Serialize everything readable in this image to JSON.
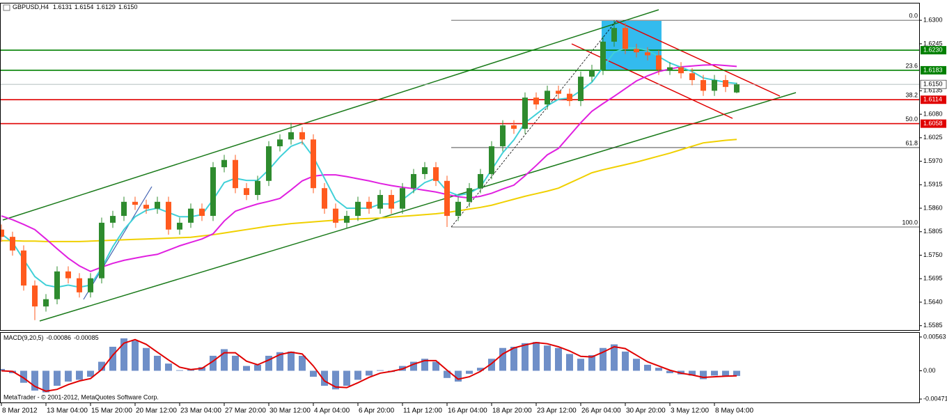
{
  "chart_data": [
    {
      "type": "candlestick",
      "title": "GBPUSD,H4",
      "ohlc_labels": [
        "1.6131",
        "1.6154",
        "1.6129",
        "1.6150"
      ],
      "watermark": "MetaTrader - © 2001-2012, MetaQuotes Software Corp.",
      "categories": [
        "8 Mar 2012",
        null,
        null,
        null,
        "13 Mar 04:00",
        null,
        null,
        null,
        "15 Mar 20:00",
        null,
        null,
        null,
        "20 Mar 12:00",
        null,
        null,
        null,
        "23 Mar 04:00",
        null,
        null,
        null,
        "27 Mar 20:00",
        null,
        null,
        null,
        "30 Mar 12:00",
        null,
        null,
        null,
        "4 Apr 04:00",
        null,
        null,
        null,
        "6 Apr 20:00",
        null,
        null,
        null,
        "11 Apr 12:00",
        null,
        null,
        null,
        "16 Apr 04:00",
        null,
        null,
        null,
        "18 Apr 20:00",
        null,
        null,
        null,
        "23 Apr 12:00",
        null,
        null,
        null,
        "26 Apr 04:00",
        null,
        null,
        null,
        "30 Apr 20:00",
        null,
        null,
        null,
        "3 May 12:00",
        null,
        null,
        null,
        "8 May 04:00",
        null,
        null
      ],
      "open": [
        1.581,
        1.5793,
        1.5761,
        1.5679,
        1.563,
        1.5647,
        1.5712,
        1.5696,
        1.5663,
        1.5696,
        1.5826,
        1.5842,
        1.5875,
        1.5868,
        1.5859,
        1.5875,
        1.581,
        1.5826,
        1.5859,
        1.5842,
        1.5956,
        1.5973,
        1.5907,
        1.5891,
        1.5924,
        1.6005,
        1.6021,
        1.6038,
        1.6021,
        1.5907,
        1.5859,
        1.5826,
        1.5842,
        1.5875,
        1.5859,
        1.5891,
        1.5859,
        1.5907,
        1.594,
        1.5956,
        1.5924,
        1.5842,
        1.5875,
        1.5907,
        1.594,
        1.6005,
        1.6054,
        1.6046,
        1.6119,
        1.6103,
        1.6135,
        1.6128,
        1.6111,
        1.6168,
        1.6184,
        1.625,
        1.6282,
        1.6233,
        1.6225,
        1.6218,
        1.6184,
        1.619,
        1.6176,
        1.616,
        1.6135,
        1.616,
        1.6131
      ],
      "high": [
        1.5822,
        1.5805,
        1.5773,
        1.5691,
        1.5659,
        1.5724,
        1.5724,
        1.5708,
        1.5708,
        1.5838,
        1.5854,
        1.5887,
        1.5887,
        1.588,
        1.5887,
        1.5887,
        1.5838,
        1.5871,
        1.5871,
        1.5968,
        1.5985,
        1.5985,
        1.5919,
        1.5936,
        1.6017,
        1.6033,
        1.606,
        1.605,
        1.6033,
        1.5919,
        1.5871,
        1.5854,
        1.5887,
        1.5887,
        1.5903,
        1.5903,
        1.5919,
        1.5952,
        1.5968,
        1.5968,
        1.5936,
        1.5887,
        1.5919,
        1.5952,
        1.6017,
        1.6066,
        1.6066,
        1.6131,
        1.6131,
        1.6147,
        1.6147,
        1.614,
        1.618,
        1.6196,
        1.6262,
        1.63,
        1.6294,
        1.6245,
        1.6237,
        1.623,
        1.6202,
        1.6202,
        1.6188,
        1.6172,
        1.6172,
        1.6172,
        1.6154
      ],
      "low": [
        1.5781,
        1.5749,
        1.5667,
        1.5598,
        1.5618,
        1.5635,
        1.5684,
        1.5651,
        1.5651,
        1.5684,
        1.5814,
        1.583,
        1.5856,
        1.5847,
        1.5847,
        1.5798,
        1.5798,
        1.5814,
        1.583,
        1.583,
        1.5944,
        1.5895,
        1.5879,
        1.5879,
        1.5912,
        1.5993,
        1.6009,
        1.6009,
        1.5895,
        1.5847,
        1.5814,
        1.5814,
        1.583,
        1.5847,
        1.5847,
        1.5847,
        1.5847,
        1.5895,
        1.5928,
        1.5912,
        1.5816,
        1.583,
        1.5863,
        1.5895,
        1.5928,
        1.5993,
        1.6034,
        1.6034,
        1.6091,
        1.6091,
        1.6116,
        1.6099,
        1.6099,
        1.6156,
        1.6172,
        1.6238,
        1.6221,
        1.6213,
        1.6206,
        1.6172,
        1.6172,
        1.6164,
        1.6148,
        1.6123,
        1.6123,
        1.6132,
        1.6129
      ],
      "close": [
        1.5793,
        1.5761,
        1.5679,
        1.563,
        1.5647,
        1.5712,
        1.5696,
        1.5663,
        1.5696,
        1.5826,
        1.5842,
        1.5875,
        1.5868,
        1.5859,
        1.5875,
        1.581,
        1.5826,
        1.5859,
        1.5842,
        1.5956,
        1.5973,
        1.5907,
        1.5891,
        1.5924,
        1.6005,
        1.6021,
        1.6038,
        1.6021,
        1.5907,
        1.5859,
        1.5826,
        1.5842,
        1.5875,
        1.5859,
        1.5891,
        1.5859,
        1.5907,
        1.594,
        1.5956,
        1.5924,
        1.5842,
        1.5875,
        1.5907,
        1.594,
        1.6005,
        1.6054,
        1.6046,
        1.6119,
        1.6103,
        1.6135,
        1.6128,
        1.6111,
        1.6168,
        1.6184,
        1.625,
        1.6282,
        1.6233,
        1.6225,
        1.6218,
        1.6184,
        1.619,
        1.6176,
        1.616,
        1.6135,
        1.616,
        1.6144,
        1.615
      ],
      "up_color": "#2e8b2e",
      "down_color": "#ff5a1e",
      "overlays": [
        {
          "color": "#f0d000",
          "values": [
            1.5784,
            1.5784,
            1.5783,
            1.5783,
            1.5782,
            1.5782,
            1.5782,
            1.5782,
            1.5783,
            1.5784,
            1.5785,
            1.5786,
            1.5787,
            1.5788,
            1.5789,
            1.579,
            1.5791,
            1.5792,
            1.5795,
            1.5798,
            1.5802,
            1.5806,
            1.581,
            1.5814,
            1.5818,
            1.5821,
            1.5824,
            1.5826,
            1.5828,
            1.583,
            1.5832,
            1.5834,
            1.5835,
            1.5836,
            1.5837,
            1.5839,
            1.5841,
            1.5843,
            1.5845,
            1.5847,
            1.585,
            1.5854,
            1.5858,
            1.5862,
            1.5867,
            1.5874,
            1.5881,
            1.5888,
            1.5894,
            1.59,
            1.5907,
            1.5919,
            1.5931,
            1.5943,
            1.595,
            1.5956,
            1.5962,
            1.5968,
            1.5975,
            1.5982,
            1.5989,
            1.5997,
            1.6005,
            1.6013,
            1.6016,
            1.6019,
            1.6021
          ]
        },
        {
          "color": "#e020e0",
          "values": [
            1.5842,
            1.5833,
            1.5822,
            1.581,
            1.5788,
            1.5765,
            1.5743,
            1.5725,
            1.5712,
            1.5722,
            1.5731,
            1.5738,
            1.5743,
            1.5748,
            1.5752,
            1.5762,
            1.5772,
            1.578,
            1.5788,
            1.58,
            1.583,
            1.5853,
            1.5862,
            1.587,
            1.5876,
            1.5883,
            1.5903,
            1.5924,
            1.5935,
            1.5938,
            1.5938,
            1.5934,
            1.5929,
            1.5924,
            1.5918,
            1.5913,
            1.5909,
            1.5906,
            1.5902,
            1.5898,
            1.5892,
            1.5887,
            1.5884,
            1.5888,
            1.5895,
            1.5905,
            1.5914,
            1.5936,
            1.596,
            1.5985,
            1.6,
            1.603,
            1.606,
            1.6087,
            1.6105,
            1.6122,
            1.614,
            1.6158,
            1.617,
            1.618,
            1.6186,
            1.6191,
            1.6193,
            1.6195,
            1.6196,
            1.6194,
            1.6192
          ]
        },
        {
          "color": "#40d0d8",
          "values": [
            1.58,
            1.578,
            1.574,
            1.57,
            1.568,
            1.5675,
            1.568,
            1.5675,
            1.568,
            1.572,
            1.577,
            1.581,
            1.584,
            1.5855,
            1.586,
            1.585,
            1.584,
            1.584,
            1.5845,
            1.588,
            1.592,
            1.593,
            1.5925,
            1.5925,
            1.595,
            1.598,
            1.6005,
            1.6015,
            1.598,
            1.593,
            1.588,
            1.586,
            1.586,
            1.586,
            1.587,
            1.587,
            1.588,
            1.59,
            1.592,
            1.593,
            1.59,
            1.589,
            1.5895,
            1.591,
            1.595,
            1.599,
            1.602,
            1.606,
            1.608,
            1.61,
            1.6115,
            1.6118,
            1.6135,
            1.6155,
            1.619,
            1.6225,
            1.6235,
            1.6235,
            1.623,
            1.6215,
            1.62,
            1.619,
            1.618,
            1.6165,
            1.616,
            1.6155,
            1.6152
          ]
        }
      ],
      "ylim": [
        1.5578,
        1.6341
      ],
      "yticks": [
        {
          "value": 1.63,
          "label": "1.6300"
        },
        {
          "value": 1.6245,
          "label": "1.6245"
        },
        {
          "value": 1.6135,
          "label": "1.6135"
        },
        {
          "value": 1.608,
          "label": "1.6080"
        },
        {
          "value": 1.6025,
          "label": "1.6025"
        },
        {
          "value": 1.597,
          "label": "1.5970"
        },
        {
          "value": 1.5915,
          "label": "1.5915"
        },
        {
          "value": 1.586,
          "label": "1.5860"
        },
        {
          "value": 1.5805,
          "label": "1.5805"
        },
        {
          "value": 1.575,
          "label": "1.5750"
        },
        {
          "value": 1.5695,
          "label": "1.5695"
        },
        {
          "value": 1.564,
          "label": "1.5640"
        },
        {
          "value": 1.5585,
          "label": "1.5585"
        }
      ],
      "levels": [
        {
          "value": 1.623,
          "label": "1.6230",
          "color": "#008000"
        },
        {
          "value": 1.6183,
          "label": "1.6183",
          "color": "#008000"
        },
        {
          "value": 1.615,
          "label": "1.6150",
          "color": "#9aa8a8"
        },
        {
          "value": 1.6114,
          "label": "1.6114",
          "color": "#e00000"
        },
        {
          "value": 1.6058,
          "label": "1.6058",
          "color": "#e00000"
        }
      ],
      "fibonacci": [
        {
          "value": 1.63,
          "label": "0.0"
        },
        {
          "value": 1.6183,
          "label": "23.6"
        },
        {
          "value": 1.6114,
          "label": "38.2"
        },
        {
          "value": 1.6058,
          "label": "50.0"
        },
        {
          "value": 1.6002,
          "label": "61.8"
        },
        {
          "value": 1.5816,
          "label": "100.0"
        }
      ]
    },
    {
      "type": "macd",
      "title": "MACD(9,20,5)",
      "histogram": {
        "color": "#6f8fc8",
        "values": [
          0.0003,
          -0.0004,
          -0.002,
          -0.0033,
          -0.0036,
          -0.0025,
          -0.0018,
          -0.0015,
          -0.001,
          0.0015,
          0.004,
          0.0054,
          0.005,
          0.0038,
          0.0025,
          0.0012,
          0.0001,
          0.0002,
          0.0006,
          0.0025,
          0.0036,
          0.0025,
          0.0008,
          0.001,
          0.0025,
          0.0031,
          0.0032,
          0.0025,
          -0.001,
          -0.0025,
          -0.0031,
          -0.0025,
          -0.0015,
          -0.0008,
          0.0001,
          -0.0002,
          0.0008,
          0.0015,
          0.002,
          0.0015,
          -0.0012,
          -0.0018,
          -0.0005,
          0.0005,
          0.002,
          0.0038,
          0.004,
          0.0046,
          0.0048,
          0.0042,
          0.0038,
          0.0028,
          0.002,
          0.0026,
          0.0038,
          0.0044,
          0.0032,
          0.002,
          0.001,
          0.0005,
          -0.0004,
          -0.0006,
          -0.0008,
          -0.0014,
          -0.0008,
          -0.0009,
          -0.00086
        ]
      },
      "signal": {
        "color": "#e00000",
        "values": [
          0,
          -0.0001,
          -0.0012,
          -0.0026,
          -0.0034,
          -0.0031,
          -0.0023,
          -0.0017,
          -0.0013,
          0.0002,
          0.0026,
          0.0046,
          0.0052,
          0.0044,
          0.0031,
          0.0018,
          0.0006,
          0.0002,
          0.0004,
          0.0016,
          0.003,
          0.003,
          0.0016,
          0.001,
          0.0018,
          0.0027,
          0.0031,
          0.0028,
          0.0008,
          -0.0017,
          -0.0027,
          -0.0028,
          -0.002,
          -0.0011,
          -0.0004,
          -0.0001,
          0.0003,
          0.0011,
          0.0017,
          0.0017,
          0.0001,
          -0.0014,
          -0.001,
          -0.0001,
          0.0012,
          0.0028,
          0.0038,
          0.0043,
          0.0047,
          0.0045,
          0.004,
          0.0033,
          0.0024,
          0.0023,
          0.0031,
          0.004,
          0.0037,
          0.0026,
          0.0015,
          0.0008,
          0.0001,
          -0.0004,
          -0.0007,
          -0.0011,
          -0.001,
          -0.0009,
          -0.00085
        ]
      },
      "ylim": [
        -0.00528,
        0.00632
      ],
      "yticks": [
        {
          "value": 0.00563,
          "label": "0.00563"
        },
        {
          "value": 0,
          "label": "0.00"
        },
        {
          "value": -0.00471,
          "label": "-0.00471"
        }
      ]
    }
  ]
}
